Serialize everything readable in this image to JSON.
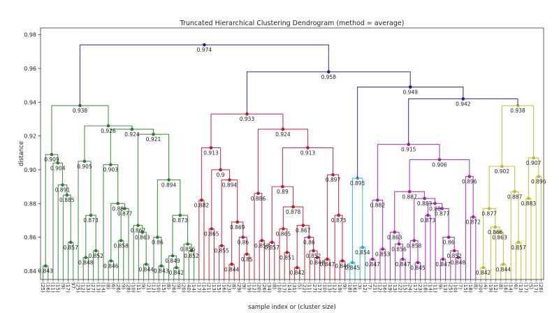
{
  "chart_data": {
    "type": "dendrogram",
    "title": "Truncated Hierarchical Clustering Dendrogram (method = average)",
    "xlabel": "sample index or (cluster size)",
    "ylabel": "distance",
    "ylim": [
      0.835,
      0.984
    ],
    "yticks": [
      0.84,
      0.86,
      0.88,
      0.9,
      0.92,
      0.94,
      0.96,
      0.98
    ],
    "grid": false,
    "colors": {
      "above": "#1c1c9c",
      "green": "#2e7d2e",
      "red": "#c0182c",
      "cyan": "#22b0b8",
      "purple": "#a020a8",
      "yellow": "#bcbc26"
    },
    "tree": [
      0.974,
      [
        0.938,
        [
          0.909,
          [
            0.843,
            "(25)",
            "(16)"
          ],
          [
            0.904,
            "(11)",
            [
              0.891,
              "(15)",
              [
                0.885,
                "(9)",
                [
                  0.857,
                  "(17)",
                  "97"
                ]
              ]
            ]
          ]
        ],
        [
          0.926,
          [
            0.905,
            "(25)",
            [
              0.873,
              [
                0.848,
                "(12)",
                "(13)"
              ],
              [
                0.852,
                "(27)",
                "(13)"
              ]
            ]
          ],
          [
            0.924,
            [
              0.903,
              "(14)",
              [
                0.88,
                [
                  0.846,
                  "(8)",
                  "(6)"
                ],
                [
                  0.877,
                  [
                    0.858,
                    "(26)",
                    "(9)"
                  ],
                  "(28)"
                ]
              ]
            ],
            [
              0.921,
              [
                0.867,
                "(10)",
                [
                  0.863,
                  "(11)",
                  [
                    0.844,
                    "(9)",
                    "(21)"
                  ]
                ]
              ],
              [
                0.894,
                [
                  0.86,
                  "(12)",
                  [
                    0.843,
                    "(10)",
                    "(15)"
                  ]
                ],
                [
                  0.873,
                  [
                    0.849,
                    "(8)",
                    [
                      0.842,
                      "(26)",
                      "(9)"
                    ]
                  ],
                  [
                    0.856,
                    "(20)",
                    [
                      0.852,
                      "(40)",
                      "(14)"
                    ]
                  ]
                ]
              ]
            ]
          ]
        ],
        "green"
      ],
      [
        0.958,
        [
          0.933,
          [
            0.913,
            [
              0.882,
              "(17)",
              "(14)"
            ],
            [
              0.9,
              [
                0.865,
                "(21)",
                "(13)"
              ],
              [
                0.894,
                [
                  0.855,
                  "(15)",
                  "(16)"
                ],
                [
                  0.869,
                  [
                    0.844,
                    "(23)",
                    "(8)"
                  ],
                  [
                    0.86,
                    "(29)",
                    [
                      0.85,
                      "(9)",
                      "(19)"
                    ]
                  ]
                ]
              ]
            ]
          ],
          [
            0.924,
            [
              0.886,
              "(12)",
              [
                0.858,
                "(20)",
                "(26)"
              ]
            ],
            [
              0.913,
              [
                0.89,
                [
                  0.857,
                  "(34)",
                  "(8)"
                ],
                [
                  0.878,
                  [
                    0.865,
                    "(10)",
                    [
                      0.851,
                      "(17)",
                      "(14)"
                    ]
                  ],
                  [
                    0.867,
                    [
                      0.842,
                      "(31)",
                      "(5)"
                    ],
                    [
                      0.86,
                      "(22)",
                      [
                        0.852,
                        "(11)",
                        [
                          0.848,
                          "(27)",
                          "(17)"
                        ]
                      ]
                    ]
                  ]
                ]
              ],
              [
                0.897,
                [
                  0.847,
                  "(10)",
                  "(13)"
                ],
                [
                  0.873,
                  "(12)",
                  [
                    0.846,
                    "(19)",
                    "(9)"
                  ]
                ]
              ]
            ]
          ],
          "red"
        ],
        [
          0.949,
          [
            0.895,
            [
              0.845,
              "(18)",
              "(16)"
            ],
            [
              0.854,
              "(3)",
              "(12)"
            ],
            "cyan"
          ],
          [
            0.942,
            [
              0.915,
              [
                0.882,
                [
                  0.847,
                  "(7)",
                  "(21)"
                ],
                [
                  0.853,
                  "(12)",
                  "(16)"
                ]
              ],
              [
                0.906,
                [
                  0.887,
                  [
                    0.863,
                    "(19)",
                    [
                      0.856,
                      "(13)",
                      [
                        0.847,
                        "(22)",
                        "(15)"
                      ]
                    ]
                  ],
                  [
                    0.883,
                    [
                      0.858,
                      "(24)",
                      [
                        0.845,
                        "(17)",
                        "(23)"
                      ]
                    ],
                    [
                      0.88,
                      [
                        0.873,
                        "(18)",
                        "(14)"
                      ],
                      [
                        0.877,
                        "(11)",
                        [
                          0.86,
                          [
                            0.847,
                            "(9)",
                            "(13)"
                          ],
                          [
                            0.852,
                            "(25)",
                            [
                              0.848,
                              "(10)",
                              "(7)"
                            ]
                          ]
                        ]
                      ]
                    ]
                  ]
                ],
                [
                  0.896,
                  "(15)",
                  [
                    0.872,
                    "(18)",
                    "(8)"
                  ]
                ]
              ],
              "purple"
            ],
            [
              0.938,
              [
                0.902,
                [
                  0.877,
                  [
                    0.842,
                    "(20)",
                    "(4)"
                  ],
                  [
                    0.866,
                    "(19)",
                    [
                      0.863,
                      "(12)",
                      [
                        0.844,
                        "(8)",
                        "(16)"
                      ]
                    ]
                  ]
                ],
                [
                  0.887,
                  "(14)",
                  [
                    0.857,
                    "(6)",
                    "(13)"
                  ]
                ]
              ],
              [
                0.907,
                [
                  0.883,
                  "(17)",
                  "(5)"
                ],
                [
                  0.896,
                  "(17)",
                  "(26)"
                ]
              ],
              "yellow"
            ]
          ]
        ]
      ]
    ]
  }
}
